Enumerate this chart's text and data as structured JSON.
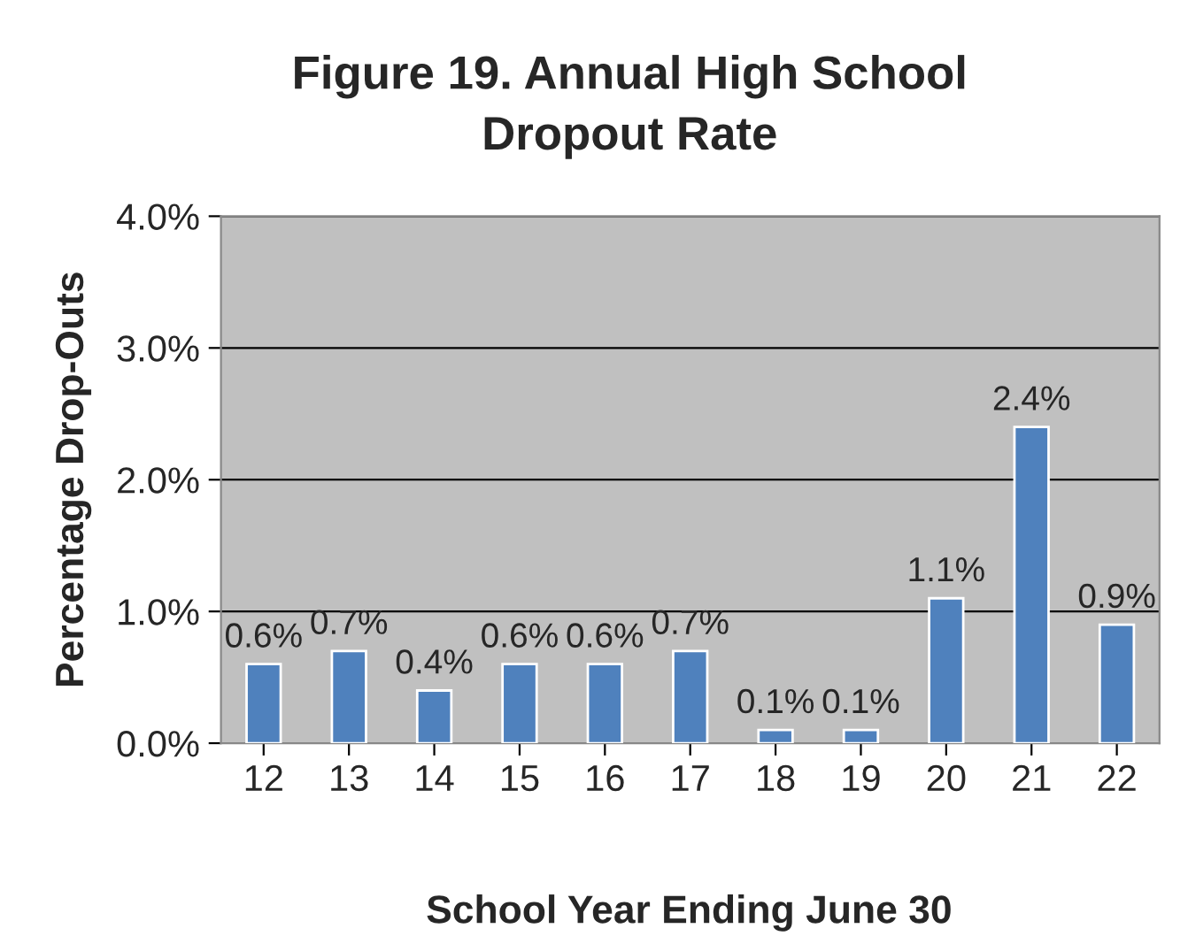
{
  "chart_data": {
    "type": "bar",
    "title": "Figure 19. Annual High School\nDropout Rate",
    "xlabel": "School Year Ending June 30",
    "ylabel": "Percentage Drop-Outs",
    "categories": [
      "12",
      "13",
      "14",
      "15",
      "16",
      "17",
      "18",
      "19",
      "20",
      "21",
      "22"
    ],
    "values": [
      0.6,
      0.7,
      0.4,
      0.6,
      0.6,
      0.7,
      0.1,
      0.1,
      1.1,
      2.4,
      0.9
    ],
    "value_labels": [
      "0.6%",
      "0.7%",
      "0.4%",
      "0.6%",
      "0.6%",
      "0.7%",
      "0.1%",
      "0.1%",
      "1.1%",
      "2.4%",
      "0.9%"
    ],
    "color": "#4f81bd",
    "ylim": [
      0,
      4
    ],
    "yticks": [
      {
        "value": 0,
        "label": "0.0%"
      },
      {
        "value": 1,
        "label": "1.0%"
      },
      {
        "value": 2,
        "label": "2.0%"
      },
      {
        "value": 3,
        "label": "3.0%"
      },
      {
        "value": 4,
        "label": "4.0%"
      }
    ],
    "grid": "y"
  }
}
